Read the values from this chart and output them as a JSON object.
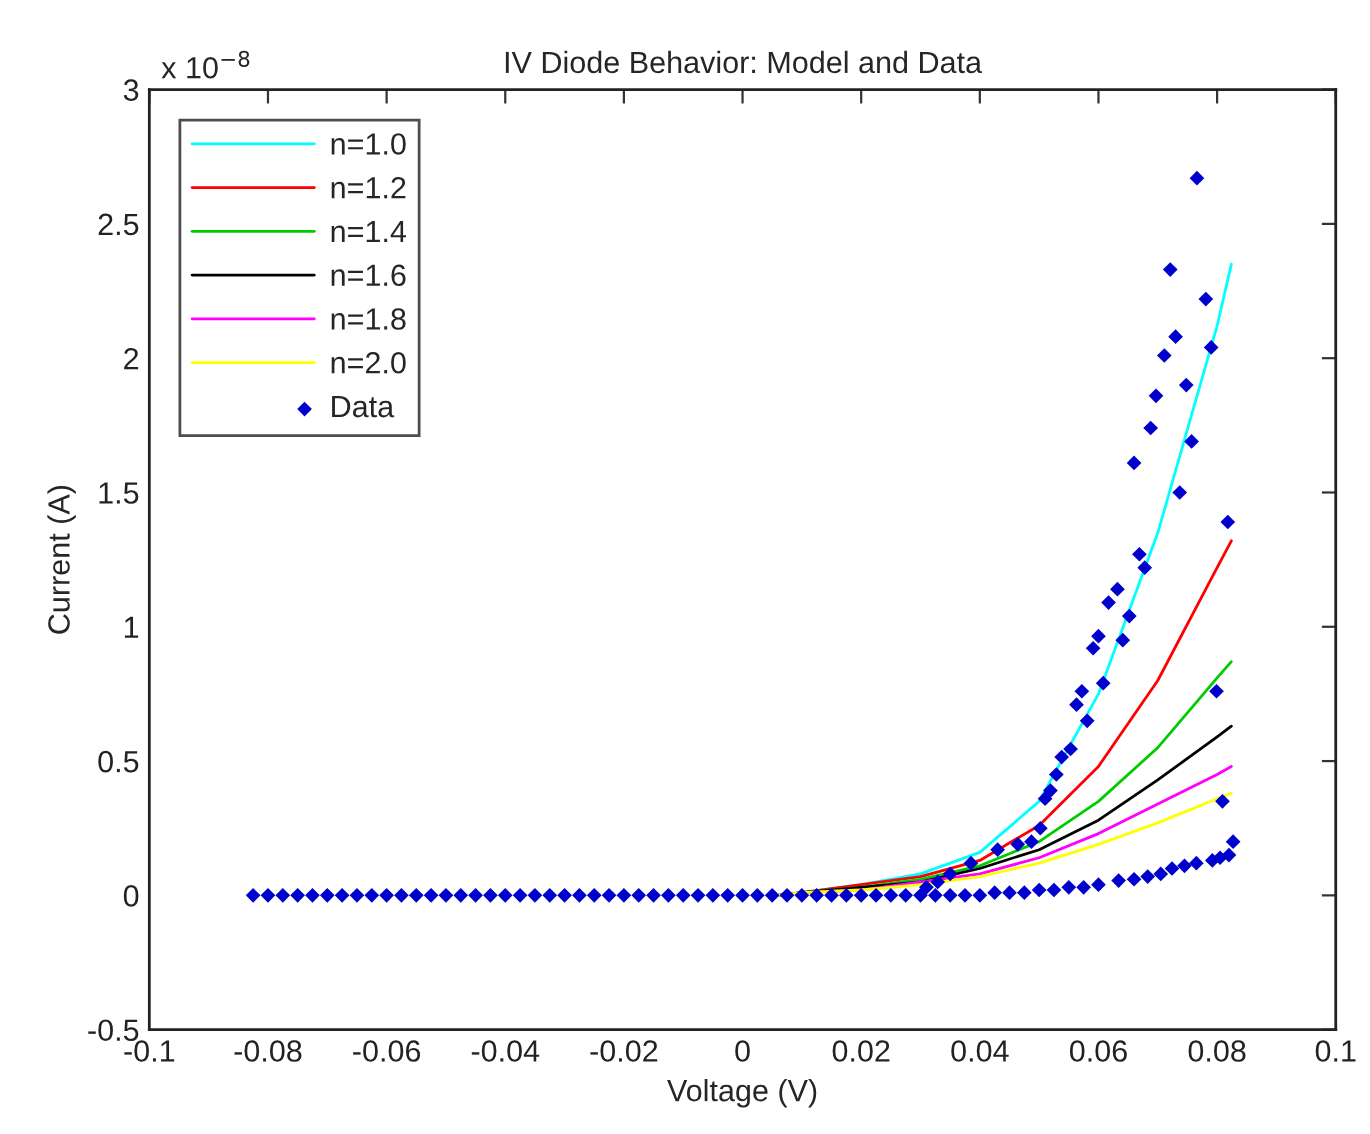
{
  "chart_data": {
    "type": "line",
    "title": "IV Diode Behavior: Model and Data",
    "xlabel": "Voltage (V)",
    "ylabel": "Current (A)",
    "annotations": [
      "x 10$^{−8}$"
    ],
    "xlim": [
      -0.1,
      0.1
    ],
    "xticks": [
      -0.1,
      -0.08,
      -0.06,
      -0.04,
      -0.02,
      0,
      0.02,
      0.04,
      0.06,
      0.08,
      0.1
    ],
    "ylim": [
      -0.5,
      3
    ],
    "yticks": [
      -0.5,
      0,
      0.5,
      1,
      1.5,
      2,
      2.5,
      3
    ],
    "legend": "top left",
    "series": [
      {
        "name": "n=1.0",
        "color": "#00ffff",
        "x": [
          0.006,
          0.01,
          0.02,
          0.03,
          0.04,
          0.05,
          0.06,
          0.07,
          0.08,
          0.0824
        ],
        "values": [
          0,
          0.01,
          0.04,
          0.08,
          0.16,
          0.35,
          0.75,
          1.35,
          2.12,
          2.35
        ]
      },
      {
        "name": "n=1.2",
        "color": "#ff0000",
        "x": [
          0.006,
          0.01,
          0.02,
          0.03,
          0.04,
          0.05,
          0.06,
          0.07,
          0.08,
          0.0824
        ],
        "values": [
          0,
          0.01,
          0.04,
          0.07,
          0.13,
          0.26,
          0.48,
          0.8,
          1.22,
          1.32
        ]
      },
      {
        "name": "n=1.4",
        "color": "#00cc00",
        "x": [
          0.006,
          0.01,
          0.02,
          0.03,
          0.04,
          0.05,
          0.06,
          0.07,
          0.08,
          0.0824
        ],
        "values": [
          0,
          0.01,
          0.03,
          0.06,
          0.11,
          0.2,
          0.35,
          0.55,
          0.81,
          0.87
        ]
      },
      {
        "name": "n=1.6",
        "color": "#000000",
        "x": [
          0.006,
          0.01,
          0.02,
          0.03,
          0.04,
          0.05,
          0.06,
          0.07,
          0.08,
          0.0824
        ],
        "values": [
          0,
          0.01,
          0.03,
          0.05,
          0.1,
          0.17,
          0.28,
          0.43,
          0.59,
          0.63
        ]
      },
      {
        "name": "n=1.8",
        "color": "#ff00ff",
        "x": [
          0.006,
          0.01,
          0.02,
          0.03,
          0.04,
          0.05,
          0.06,
          0.07,
          0.08,
          0.0824
        ],
        "values": [
          0,
          0.01,
          0.02,
          0.05,
          0.08,
          0.14,
          0.23,
          0.34,
          0.45,
          0.48
        ]
      },
      {
        "name": "n=2.0",
        "color": "#ffff00",
        "x": [
          0.006,
          0.01,
          0.02,
          0.03,
          0.04,
          0.05,
          0.06,
          0.07,
          0.08,
          0.0824
        ],
        "values": [
          0,
          0.01,
          0.02,
          0.04,
          0.07,
          0.12,
          0.19,
          0.27,
          0.36,
          0.38
        ]
      },
      {
        "name": "Data",
        "type": "scatter",
        "marker": "diamond",
        "color": "#0000cc",
        "x": [
          -0.0825,
          -0.08,
          -0.0775,
          -0.075,
          -0.0725,
          -0.07,
          -0.0675,
          -0.065,
          -0.0625,
          -0.06,
          -0.0575,
          -0.055,
          -0.0525,
          -0.05,
          -0.0475,
          -0.045,
          -0.0425,
          -0.04,
          -0.0375,
          -0.035,
          -0.0325,
          -0.03,
          -0.0275,
          -0.025,
          -0.0225,
          -0.02,
          -0.0175,
          -0.015,
          -0.0125,
          -0.01,
          -0.0075,
          -0.005,
          -0.0025,
          0,
          0.0025,
          0.005,
          0.0075,
          0.01,
          0.0125,
          0.015,
          0.0175,
          0.02,
          0.0225,
          0.025,
          0.0275,
          0.03,
          0.0325,
          0.035,
          0.0375,
          0.04,
          0.0425,
          0.045,
          0.0475,
          0.05,
          0.0525,
          0.055,
          0.0575,
          0.06,
          0.0634,
          0.066,
          0.0683,
          0.0705,
          0.0724,
          0.0745,
          0.0765,
          0.0792,
          0.0805,
          0.082,
          0.031,
          0.0329,
          0.035,
          0.0385,
          0.043,
          0.0464,
          0.0487,
          0.0502,
          0.051,
          0.0519,
          0.0529,
          0.0538,
          0.0553,
          0.0581,
          0.0563,
          0.0572,
          0.0608,
          0.0591,
          0.06,
          0.0641,
          0.0652,
          0.0617,
          0.0632,
          0.0678,
          0.0669,
          0.066,
          0.0737,
          0.0757,
          0.0688,
          0.0748,
          0.0697,
          0.0711,
          0.079,
          0.073,
          0.0781,
          0.0721,
          0.0766,
          0.0818,
          0.0799,
          0.0809,
          0.0827
        ],
        "values": [
          0,
          0,
          0,
          0,
          0,
          0,
          0,
          0,
          0,
          0,
          0,
          0,
          0,
          0,
          0,
          0,
          0,
          0,
          0,
          0,
          0,
          0,
          0,
          0,
          0,
          0,
          0,
          0,
          0,
          0,
          0,
          0,
          0,
          0,
          0,
          0,
          0,
          0,
          0,
          0,
          0,
          0,
          0,
          0,
          0,
          0,
          0,
          0,
          0,
          0,
          0.01,
          0.01,
          0.01,
          0.02,
          0.02,
          0.03,
          0.03,
          0.04,
          0.055,
          0.06,
          0.07,
          0.08,
          0.1,
          0.11,
          0.12,
          0.13,
          0.14,
          0.15,
          0.03,
          0.05,
          0.08,
          0.12,
          0.17,
          0.19,
          0.2,
          0.25,
          0.36,
          0.39,
          0.45,
          0.515,
          0.545,
          0.65,
          0.71,
          0.76,
          0.79,
          0.92,
          0.965,
          0.95,
          1.04,
          1.09,
          1.14,
          1.22,
          1.27,
          1.61,
          1.5,
          1.69,
          1.74,
          1.9,
          1.86,
          2.01,
          2.04,
          2.08,
          2.22,
          2.33,
          2.67,
          1.39,
          0.76,
          0.35,
          0.2
        ]
      }
    ]
  }
}
